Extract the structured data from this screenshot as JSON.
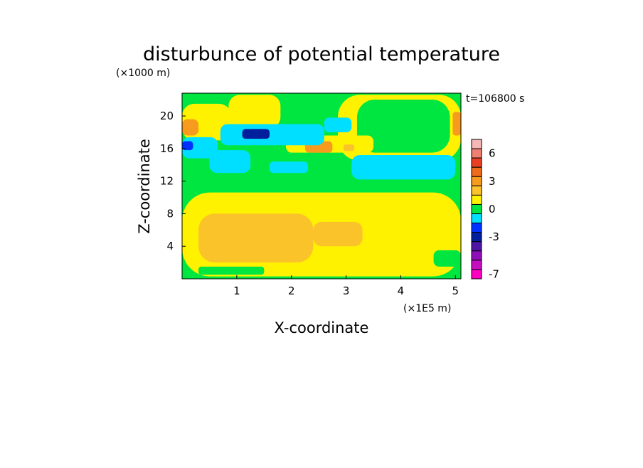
{
  "chart_data": {
    "type": "heatmap",
    "title": "disturbunce of potential temperature",
    "time_label": "t=106800 s",
    "xlabel": "X-coordinate",
    "ylabel": "Z-coordinate",
    "x_unit": "(×1E5 m)",
    "y_unit": "(×1000 m)",
    "xlim": [
      0,
      5.1
    ],
    "ylim": [
      0,
      22.8
    ],
    "x_ticks": [
      "1",
      "2",
      "3",
      "4",
      "5"
    ],
    "y_ticks": [
      "4",
      "8",
      "12",
      "16",
      "20"
    ],
    "grid": false,
    "colorbar": {
      "levels": [
        {
          "value": 7,
          "color": "#f5b7b5"
        },
        {
          "value": 6,
          "color": "#ee7f72"
        },
        {
          "value": 5,
          "color": "#ea3f24"
        },
        {
          "value": 4,
          "color": "#f06a1c"
        },
        {
          "value": 3,
          "color": "#f79b1e"
        },
        {
          "value": 2,
          "color": "#fbc32a"
        },
        {
          "value": 1,
          "color": "#fff200"
        },
        {
          "value": 0,
          "color": "#00e640"
        },
        {
          "value": -1,
          "color": "#00dfff"
        },
        {
          "value": -2,
          "color": "#0032ff"
        },
        {
          "value": -3,
          "color": "#001f9c"
        },
        {
          "value": -4,
          "color": "#4d16a4"
        },
        {
          "value": -5,
          "color": "#8e0fb7"
        },
        {
          "value": -6,
          "color": "#c40fc0"
        },
        {
          "value": -7,
          "color": "#ff00c3"
        }
      ],
      "labels": [
        "6",
        "3",
        "0",
        "-3",
        "-7"
      ]
    },
    "field": {
      "background_value": 0,
      "regions": [
        {
          "value": 1,
          "x": [
            0.0,
            5.1
          ],
          "z": [
            0.3,
            10.6
          ]
        },
        {
          "value": 2,
          "x": [
            0.3,
            2.4
          ],
          "z": [
            2.0,
            8.0
          ]
        },
        {
          "value": 2,
          "x": [
            2.4,
            3.3
          ],
          "z": [
            4.0,
            7.0
          ]
        },
        {
          "value": 0,
          "x": [
            4.6,
            5.1
          ],
          "z": [
            1.5,
            3.5
          ]
        },
        {
          "value": 0,
          "x": [
            0.3,
            1.5
          ],
          "z": [
            0.5,
            1.5
          ]
        },
        {
          "value": 1,
          "x": [
            0.85,
            1.8
          ],
          "z": [
            18.5,
            22.6
          ]
        },
        {
          "value": 1,
          "x": [
            2.85,
            5.1
          ],
          "z": [
            14.5,
            22.6
          ]
        },
        {
          "value": 0,
          "x": [
            3.2,
            4.9
          ],
          "z": [
            15.5,
            22.0
          ]
        },
        {
          "value": 1,
          "x": [
            1.9,
            3.5
          ],
          "z": [
            15.5,
            17.6
          ]
        },
        {
          "value": 1,
          "x": [
            0.0,
            0.9
          ],
          "z": [
            17.0,
            21.5
          ]
        },
        {
          "value": 3,
          "x": [
            0.0,
            0.3
          ],
          "z": [
            17.6,
            19.6
          ]
        },
        {
          "value": 3,
          "x": [
            4.95,
            5.1
          ],
          "z": [
            17.6,
            20.5
          ]
        },
        {
          "value": 3,
          "x": [
            2.25,
            2.75
          ],
          "z": [
            15.5,
            16.9
          ]
        },
        {
          "value": 2,
          "x": [
            2.95,
            3.15
          ],
          "z": [
            15.7,
            16.5
          ]
        },
        {
          "value": -1,
          "x": [
            0.0,
            0.65
          ],
          "z": [
            14.8,
            17.4
          ]
        },
        {
          "value": -1,
          "x": [
            0.7,
            2.6
          ],
          "z": [
            16.4,
            19.0
          ]
        },
        {
          "value": -1,
          "x": [
            2.6,
            3.1
          ],
          "z": [
            18.0,
            19.8
          ]
        },
        {
          "value": -1,
          "x": [
            0.5,
            1.25
          ],
          "z": [
            13.0,
            15.8
          ]
        },
        {
          "value": -1,
          "x": [
            1.6,
            2.3
          ],
          "z": [
            13.0,
            14.4
          ]
        },
        {
          "value": -1,
          "x": [
            3.1,
            5.0
          ],
          "z": [
            12.2,
            15.2
          ]
        },
        {
          "value": -3,
          "x": [
            1.1,
            1.6
          ],
          "z": [
            17.2,
            18.4
          ]
        },
        {
          "value": -2,
          "x": [
            0.0,
            0.2
          ],
          "z": [
            15.8,
            16.9
          ]
        }
      ]
    }
  }
}
